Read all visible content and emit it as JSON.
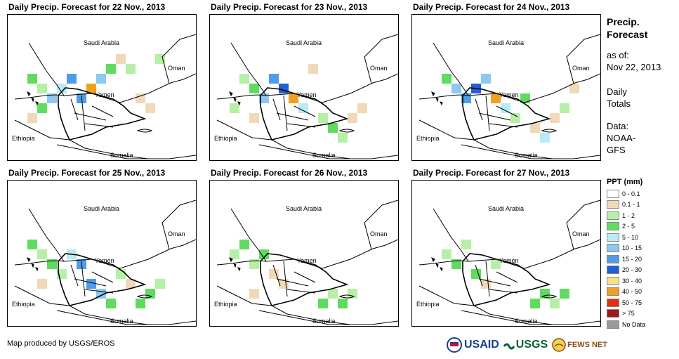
{
  "panels": [
    {
      "title": "Daily Precip. Forecast for 22 Nov., 2013"
    },
    {
      "title": "Daily Precip. Forecast for 23 Nov., 2013"
    },
    {
      "title": "Daily Precip. Forecast for 24 Nov., 2013"
    },
    {
      "title": "Daily Precip. Forecast for 25 Nov., 2013"
    },
    {
      "title": "Daily Precip. Forecast for 26 Nov., 2013"
    },
    {
      "title": "Daily Precip. Forecast for 27 Nov., 2013"
    }
  ],
  "map_labels": {
    "saudi": "Saudi Arabia",
    "oman": "Oman",
    "yemen": "Yemen",
    "ethiopia": "Ethiopia",
    "somalia": "Somalia"
  },
  "side": {
    "title_line1": "Precip.",
    "title_line2": "Forecast",
    "asof_label": "as of:",
    "asof_date": "Nov 22, 2013",
    "daily_line1": "Daily",
    "daily_line2": "Totals",
    "data_line1": "Data:",
    "data_line2": "NOAA-",
    "data_line3": "GFS"
  },
  "legend": {
    "title": "PPT (mm)",
    "items": [
      {
        "label": "0 - 0.1",
        "color": "#ffffff"
      },
      {
        "label": "0.1 - 1",
        "color": "#efd9b8"
      },
      {
        "label": "1 - 2",
        "color": "#b6efa6"
      },
      {
        "label": "2 - 5",
        "color": "#5fdc5f"
      },
      {
        "label": "5 - 10",
        "color": "#b8ecf4"
      },
      {
        "label": "10 - 15",
        "color": "#8cc8f0"
      },
      {
        "label": "15 - 20",
        "color": "#4f9de8"
      },
      {
        "label": "20 - 30",
        "color": "#1f5fd8"
      },
      {
        "label": "30 - 40",
        "color": "#f6e08a"
      },
      {
        "label": "40 - 50",
        "color": "#f0a020"
      },
      {
        "label": "50 - 75",
        "color": "#e03010"
      },
      {
        "label": "> 75",
        "color": "#a01818"
      },
      {
        "label": "No Data",
        "color": "#9a9a9a"
      }
    ]
  },
  "footer": {
    "credit": "Map produced by USGS/EROS"
  },
  "logos": {
    "usaid": "USAID",
    "usgs": "USGS",
    "fews": "FEWS NET"
  }
}
